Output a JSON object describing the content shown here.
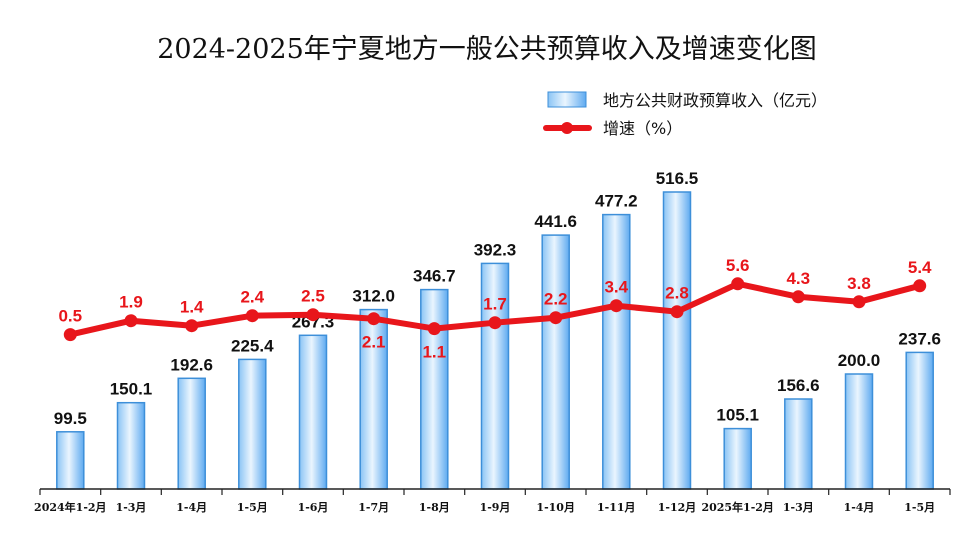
{
  "chart_data": {
    "type": "bar",
    "title": "2024-2025年宁夏地方一般公共预算收入及增速变化图",
    "categories": [
      "2024年1-2月",
      "1-3月",
      "1-4月",
      "1-5月",
      "1-6月",
      "1-7月",
      "1-8月",
      "1-9月",
      "1-10月",
      "1-11月",
      "1-12月",
      "2025年1-2月",
      "1-3月",
      "1-4月",
      "1-5月"
    ],
    "series": [
      {
        "name": "地方公共财政预算收入（亿元）",
        "type": "bar",
        "axis": "left",
        "values": [
          99.5,
          150.1,
          192.6,
          225.4,
          267.3,
          312.0,
          346.7,
          392.3,
          441.6,
          477.2,
          516.5,
          105.1,
          156.6,
          200.0,
          237.6
        ],
        "labels": [
          "99.5",
          "150.1",
          "192.6",
          "225.4",
          "267.3",
          "312.0",
          "346.7",
          "392.3",
          "441.6",
          "477.2",
          "516.5",
          "105.1",
          "156.6",
          "200.0",
          "237.6"
        ]
      },
      {
        "name": "增速（%）",
        "type": "line",
        "axis": "right",
        "values": [
          0.5,
          1.9,
          1.4,
          2.4,
          2.5,
          2.1,
          1.1,
          1.7,
          2.2,
          3.4,
          2.8,
          5.6,
          4.3,
          3.8,
          5.4
        ],
        "labels": [
          "0.5",
          "1.9",
          "1.4",
          "2.4",
          "2.5",
          "2.1",
          "1.1",
          "1.7",
          "2.2",
          "3.4",
          "2.8",
          "5.6",
          "4.3",
          "3.8",
          "5.4"
        ]
      }
    ],
    "ylim": [
      0,
      600
    ],
    "ylim_right": [
      -15,
      10
    ],
    "grid": false,
    "legend_position": "top-right",
    "colors": {
      "bar_fill_light": "#e3f1fd",
      "bar_fill_dark": "#5eaaf0",
      "bar_stroke": "#3d8fd9",
      "line": "#e8161b",
      "rate_label": "#e8161b",
      "axis": "#222222"
    }
  }
}
